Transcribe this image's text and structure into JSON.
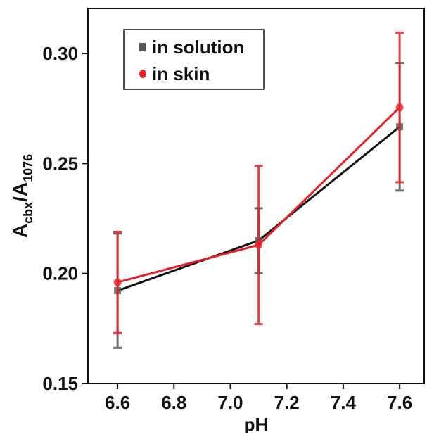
{
  "chart_data": {
    "type": "line",
    "xlabel": "pH",
    "ylabel_parts": [
      "A",
      "cbx",
      "/A",
      "1076"
    ],
    "xlim": [
      6.495,
      7.687
    ],
    "ylim": [
      0.15,
      0.3205
    ],
    "xticks": [
      6.6,
      6.8,
      {
        "value": 7,
        "label": "7.0"
      },
      7.2,
      7.4,
      7.6
    ],
    "yticks": [
      0.15,
      {
        "value": 0.2,
        "label": "0.20"
      },
      0.25,
      {
        "value": 0.3,
        "label": "0.30"
      }
    ],
    "legend": "upper-left",
    "series": [
      {
        "name": "in solution",
        "color": "#111111",
        "error_color": "#555555",
        "marker": "square",
        "x": [
          6.6,
          7.1,
          7.6
        ],
        "values": [
          0.1922,
          0.215,
          0.2667
        ],
        "errors": [
          0.026,
          0.0147,
          0.029
        ]
      },
      {
        "name": "in skin",
        "color": "#e52228",
        "error_color": "#e52228",
        "marker": "circle",
        "x": [
          6.6,
          7.1,
          7.6
        ],
        "values": [
          0.196,
          0.213,
          0.2755
        ],
        "errors": [
          0.023,
          0.036,
          0.034
        ]
      }
    ]
  }
}
